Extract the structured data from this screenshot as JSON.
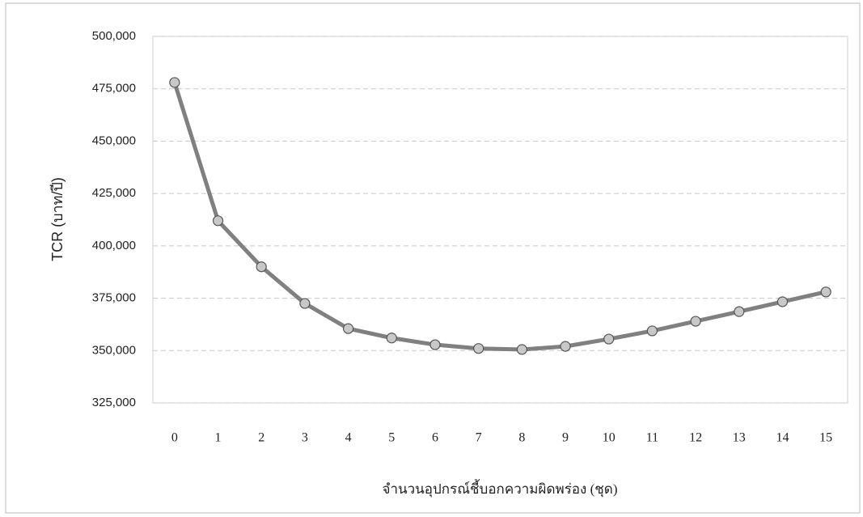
{
  "chart_data": {
    "type": "line",
    "xlabel": "จำนวนอุปกรณ์ชี้บอกความผิดพร่อง (ชุด)",
    "ylabel": "TCR (บาท/ปี)",
    "categories": [
      "0",
      "1",
      "2",
      "3",
      "4",
      "5",
      "6",
      "7",
      "8",
      "9",
      "10",
      "11",
      "12",
      "13",
      "14",
      "15"
    ],
    "values": [
      478000,
      412000,
      390000,
      372500,
      360500,
      356000,
      352800,
      351000,
      350500,
      352000,
      355500,
      359400,
      364000,
      368600,
      373300,
      378000
    ],
    "color": "#808080",
    "marker_color": "#c8c8c8",
    "ylim": [
      325000,
      500000
    ],
    "yticks": [
      {
        "value": 325000,
        "label": "325,000"
      },
      {
        "value": 350000,
        "label": "350,000"
      },
      {
        "value": 375000,
        "label": "375,000"
      },
      {
        "value": 400000,
        "label": "400,000"
      },
      {
        "value": 425000,
        "label": "425,000"
      },
      {
        "value": 450000,
        "label": "450,000"
      },
      {
        "value": 475000,
        "label": "475,000"
      },
      {
        "value": 500000,
        "label": "500,000"
      }
    ],
    "grid": true
  }
}
